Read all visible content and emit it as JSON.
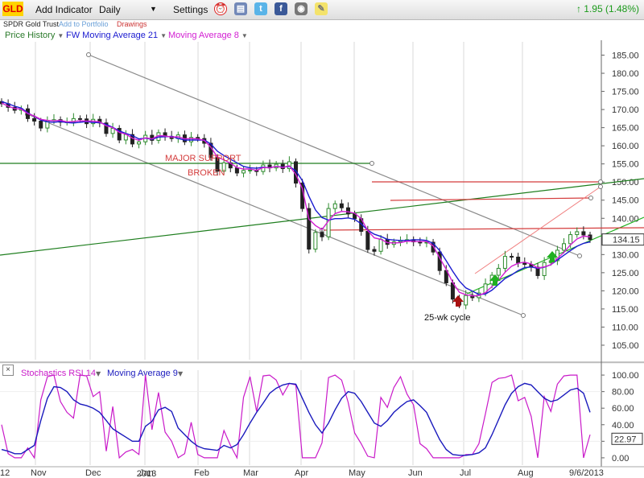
{
  "toolbar": {
    "ticker": "GLD",
    "add_indicator": "Add Indicator",
    "period": "Daily",
    "settings": "Settings",
    "change": "1.95 (1.48%)",
    "icons": [
      "alarm-clock-icon",
      "notes-icon",
      "twitter-icon",
      "facebook-icon",
      "camera-icon",
      "sticky-note-icon"
    ]
  },
  "subbar": {
    "name": "SPDR Gold Trust",
    "add_portfolio": "Add to Portfolio",
    "drawings": "Drawings"
  },
  "legend": {
    "price": "Price History",
    "fwma": "FW Moving Average 21",
    "ma8": "Moving Average 8",
    "stoch": "Stochastics RSI 14",
    "stoch_ma": "Moving Average 9"
  },
  "colors": {
    "price_label": "#2a7a2a",
    "fwma": "#1a1ad0",
    "ma8": "#d21ed2",
    "stoch": "#c91ac9",
    "stoch_ma": "#1a1abd",
    "support": "#1e7e1e",
    "resistance": "#d43c3c",
    "channel": "#8a8a8a",
    "arrow_red": "#a81010",
    "arrow_green": "#20b020"
  },
  "chart_data": {
    "type": "line",
    "x_labels": [
      "12",
      "Nov",
      "Dec",
      "Jan",
      "Feb",
      "Mar",
      "Apr",
      "May",
      "Jun",
      "Jul",
      "Aug",
      "9/6/2013"
    ],
    "year_label": "2013",
    "price_axis": {
      "ticks": [
        "185.00",
        "180.00",
        "175.00",
        "170.00",
        "165.00",
        "160.00",
        "155.00",
        "150.00",
        "145.00",
        "140.00",
        "135.00",
        "130.00",
        "125.00",
        "120.00",
        "115.00",
        "110.00",
        "105.00"
      ],
      "ylim": [
        101,
        188
      ],
      "last_price": "134.15"
    },
    "close": [
      171.6,
      170.6,
      169.8,
      170.2,
      167.5,
      166.8,
      164.9,
      166.9,
      167.2,
      166.5,
      166.6,
      167.5,
      167.4,
      166.1,
      167.3,
      166.3,
      163.4,
      164.8,
      161.6,
      163.1,
      160.5,
      161.1,
      162.9,
      161.5,
      163.6,
      162.6,
      162.0,
      163.0,
      161.1,
      162.3,
      162.0,
      160.7,
      156.8,
      153.0,
      155.3,
      153.9,
      152.5,
      153.2,
      153.3,
      152.9,
      154.7,
      153.9,
      154.9,
      153.7,
      155.6,
      149.7,
      142.7,
      131.5,
      136.1,
      134.9,
      142.7,
      144.0,
      142.9,
      141.2,
      139.9,
      136.4,
      131.4,
      130.9,
      134.2,
      132.8,
      133.5,
      133.8,
      134.1,
      133.5,
      133.2,
      133.4,
      130.7,
      125.6,
      122.2,
      117.7,
      116.1,
      118.7,
      118.1,
      119.4,
      121.9,
      124.3,
      126.2,
      129.5,
      129.3,
      127.7,
      127.3,
      126.5,
      124.2,
      127.8,
      128.3,
      131.2,
      133.0,
      135.5,
      136.3,
      135.4,
      134.15
    ],
    "fw_ma_21": [
      172.2,
      171.6,
      170.9,
      170.4,
      169.1,
      168.1,
      167.1,
      166.6,
      166.5,
      166.7,
      166.4,
      166.3,
      166.5,
      166.7,
      166.4,
      166.4,
      165.9,
      165.1,
      164.1,
      163.4,
      162.8,
      161.9,
      162.1,
      161.8,
      162.4,
      162.5,
      162.6,
      162.0,
      161.6,
      161.6,
      161.6,
      161.6,
      160.5,
      158.5,
      157.3,
      156.3,
      155.3,
      154.3,
      153.9,
      153.8,
      154.1,
      153.9,
      154.3,
      154.1,
      154.3,
      153.1,
      150.4,
      146.1,
      142.3,
      140.2,
      139.5,
      139.9,
      139.9,
      140.1,
      139.7,
      138.5,
      136.7,
      135.6,
      135.0,
      134.2,
      134.0,
      133.9,
      133.9,
      134.1,
      134.1,
      133.9,
      133.1,
      131.1,
      128.3,
      125.4,
      122.7,
      120.8,
      119.9,
      119.0,
      119.1,
      120.2,
      121.8,
      123.4,
      124.4,
      125.6,
      126.4,
      126.6,
      126.2,
      126.5,
      127.2,
      128.5,
      129.8,
      131.1,
      132.3,
      133.1,
      133.5
    ],
    "ma_8": [
      171.8,
      170.9,
      170.3,
      170.1,
      168.9,
      168.2,
      167.3,
      167.0,
      166.9,
      167.0,
      166.6,
      166.7,
      166.9,
      166.8,
      166.8,
      166.6,
      165.5,
      165.0,
      163.7,
      163.2,
      162.1,
      161.5,
      162.2,
      161.9,
      162.8,
      162.7,
      162.4,
      162.5,
      161.9,
      162.0,
      161.9,
      161.5,
      159.6,
      156.9,
      156.1,
      155.2,
      154.0,
      153.6,
      153.6,
      153.2,
      154.0,
      153.9,
      154.3,
      154.0,
      154.5,
      152.1,
      148.2,
      139.8,
      138.0,
      136.9,
      139.3,
      141.3,
      141.9,
      141.8,
      141.4,
      139.9,
      136.6,
      134.6,
      134.2,
      133.3,
      133.2,
      133.3,
      133.7,
      133.6,
      133.6,
      133.6,
      132.4,
      129.1,
      125.9,
      122.3,
      119.6,
      118.9,
      118.6,
      118.7,
      119.5,
      121.2,
      122.9,
      125.1,
      126.8,
      127.6,
      127.9,
      127.4,
      126.3,
      126.6,
      127.2,
      128.9,
      130.6,
      132.7,
      134.3,
      135.1,
      134.9
    ],
    "stoch_rsi": [
      40,
      5,
      0,
      0,
      12,
      0,
      70,
      98,
      100,
      68,
      55,
      48,
      100,
      99,
      74,
      80,
      8,
      62,
      0,
      7,
      10,
      4,
      100,
      34,
      79,
      31,
      20,
      0,
      5,
      43,
      4,
      0,
      0,
      0,
      33,
      15,
      0,
      73,
      98,
      56,
      99,
      100,
      94,
      76,
      90,
      88,
      0,
      0,
      0,
      18,
      97,
      100,
      94,
      67,
      30,
      17,
      2,
      0,
      73,
      61,
      85,
      98,
      77,
      64,
      17,
      11,
      0,
      0,
      0,
      0,
      0,
      4,
      4,
      17,
      53,
      91,
      96,
      97,
      100,
      69,
      73,
      50,
      0,
      74,
      56,
      89,
      99,
      100,
      100,
      0,
      28
    ],
    "stoch_ma_9": [
      10,
      8,
      5,
      5,
      10,
      15,
      45,
      72,
      86,
      85,
      80,
      70,
      65,
      63,
      60,
      55,
      45,
      35,
      30,
      25,
      20,
      20,
      38,
      44,
      58,
      61,
      56,
      36,
      28,
      20,
      14,
      11,
      10,
      9,
      15,
      12,
      16,
      28,
      42,
      55,
      66,
      78,
      84,
      88,
      90,
      89,
      72,
      55,
      40,
      30,
      42,
      58,
      72,
      80,
      78,
      68,
      55,
      42,
      38,
      45,
      55,
      62,
      68,
      70,
      63,
      55,
      38,
      22,
      10,
      4,
      3,
      3,
      4,
      6,
      12,
      28,
      46,
      64,
      78,
      86,
      90,
      88,
      80,
      72,
      68,
      70,
      76,
      82,
      84,
      78,
      55
    ],
    "stoch_axis": {
      "ticks": [
        "100.00",
        "80.00",
        "60.00",
        "40.00",
        "20.00",
        "0.00"
      ],
      "ylim": [
        -3,
        103
      ],
      "last_value": "22.97"
    }
  },
  "annotations": {
    "major_support": "MAJOR SUPPORT",
    "broken": "BROKEN",
    "cycle": "25-wk cycle"
  }
}
